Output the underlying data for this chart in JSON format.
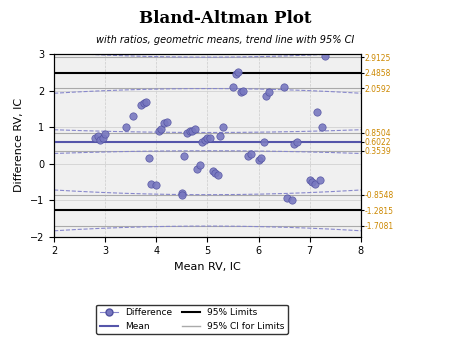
{
  "title": "Bland-Altman Plot",
  "subtitle": "with ratios, geometric means, trend line with 95% CI",
  "xlabel": "Mean RV, IC",
  "ylabel": "Difference RV, IC",
  "xlim": [
    2,
    8
  ],
  "ylim": [
    -2,
    3
  ],
  "xticks": [
    2,
    3,
    4,
    5,
    6,
    7,
    8
  ],
  "yticks": [
    -2,
    -1,
    0,
    1,
    2,
    3
  ],
  "mean_line": 0.6022,
  "upper_limit": 2.4858,
  "lower_limit": -1.2815,
  "right_labels": [
    2.9125,
    2.4858,
    2.0592,
    0.8504,
    0.6022,
    0.3539,
    -0.8548,
    -1.2815,
    -1.7081
  ],
  "scatter_x": [
    2.8,
    2.85,
    2.9,
    2.95,
    3.0,
    3.4,
    3.55,
    3.7,
    3.75,
    3.8,
    3.85,
    3.9,
    4.0,
    4.05,
    4.1,
    4.15,
    4.2,
    4.5,
    4.5,
    4.55,
    4.6,
    4.65,
    4.7,
    4.75,
    4.8,
    4.85,
    4.9,
    4.95,
    5.0,
    5.05,
    5.1,
    5.15,
    5.2,
    5.25,
    5.3,
    5.5,
    5.55,
    5.6,
    5.65,
    5.7,
    5.8,
    5.85,
    6.0,
    6.05,
    6.1,
    6.15,
    6.2,
    6.5,
    6.55,
    6.65,
    6.7,
    6.75,
    7.0,
    7.05,
    7.1,
    7.15,
    7.2,
    7.25,
    7.3
  ],
  "scatter_y": [
    0.7,
    0.75,
    0.65,
    0.7,
    0.8,
    1.0,
    1.3,
    1.6,
    1.65,
    1.7,
    0.15,
    -0.55,
    -0.6,
    0.9,
    0.95,
    1.1,
    1.15,
    -0.8,
    -0.85,
    0.2,
    0.85,
    0.9,
    0.9,
    0.95,
    -0.15,
    -0.05,
    0.6,
    0.65,
    0.7,
    0.7,
    -0.2,
    -0.25,
    -0.3,
    0.75,
    1.0,
    2.1,
    2.45,
    2.5,
    1.95,
    2.0,
    0.2,
    0.25,
    0.1,
    0.15,
    0.6,
    1.85,
    1.95,
    2.1,
    -0.95,
    -1.0,
    0.55,
    0.6,
    -0.45,
    -0.5,
    -0.55,
    1.4,
    -0.45,
    1.0,
    2.95
  ],
  "dot_color": "#7878c0",
  "dot_edge_color": "#5050a0",
  "mean_color": "#5555aa",
  "limit_color": "black",
  "ci_limit_color": "#aaaaaa",
  "trend_ci_color": "#8888cc",
  "grid_color": "#cccccc",
  "bg_color": "#f0f0f0"
}
